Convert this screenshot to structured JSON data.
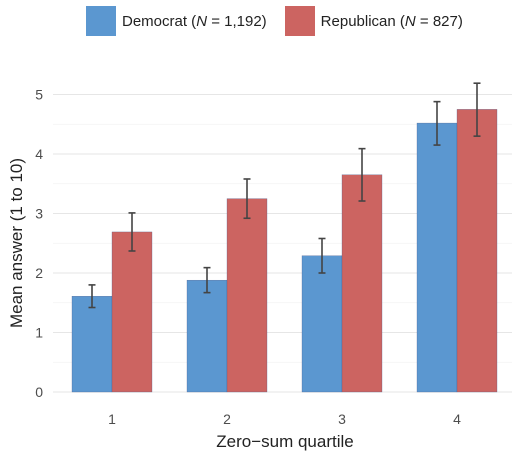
{
  "chart_data": {
    "type": "bar",
    "xlabel": "Zero−sum quartile",
    "ylabel": "Mean answer (1 to 10)",
    "ylim": [
      0,
      5.4
    ],
    "yticks": [
      0,
      1,
      2,
      3,
      4,
      5
    ],
    "categories": [
      "1",
      "2",
      "3",
      "4"
    ],
    "grid": true,
    "legend_position": "top",
    "series": [
      {
        "name": "Democrat",
        "n_label": "1,192",
        "color": "#5b97d0",
        "values": [
          1.61,
          1.88,
          2.29,
          4.52
        ],
        "error_low": [
          1.42,
          1.67,
          2.0,
          4.15
        ],
        "error_high": [
          1.8,
          2.09,
          2.58,
          4.88
        ]
      },
      {
        "name": "Republican",
        "n_label": "827",
        "color": "#cc6461",
        "values": [
          2.69,
          3.25,
          3.65,
          4.75
        ],
        "error_low": [
          2.37,
          2.92,
          3.21,
          4.3
        ],
        "error_high": [
          3.01,
          3.58,
          4.09,
          5.19
        ]
      }
    ]
  },
  "legend": {
    "democrat_prefix": "Democrat (",
    "republican_prefix": "Republican (",
    "n_symbol": "N",
    "democrat_suffix": " = 1,192)",
    "republican_suffix": " = 827)"
  }
}
